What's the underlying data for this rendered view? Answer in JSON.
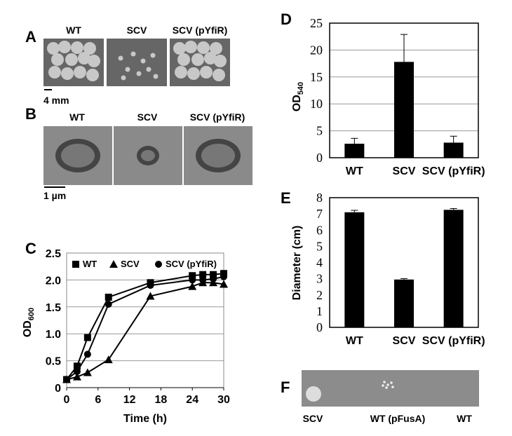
{
  "panel_labels": {
    "a": "A",
    "b": "B",
    "c": "C",
    "d": "D",
    "e": "E",
    "f": "F"
  },
  "panel_a": {
    "labels": [
      "WT",
      "SCV",
      "SCV (pYfiR)"
    ],
    "scale": "4 mm"
  },
  "panel_b": {
    "labels": [
      "WT",
      "SCV",
      "SCV (pYfiR)"
    ],
    "scale": "1 µm"
  },
  "panel_f": {
    "labels": [
      "SCV",
      "WT (pFusA)",
      "WT"
    ]
  },
  "chart_data": [
    {
      "type": "line",
      "panel": "C",
      "xlabel": "Time (h)",
      "ylabel": "OD600",
      "xlim": [
        0,
        30
      ],
      "ylim": [
        0,
        2.5
      ],
      "xticks": [
        "0",
        "6",
        "12",
        "18",
        "24",
        "30"
      ],
      "yticks": [
        "0",
        "0.5",
        "1.0",
        "1.5",
        "2.0",
        "2.5"
      ],
      "grid": true,
      "legend": "top",
      "x": [
        0,
        2,
        4,
        8,
        16,
        24,
        26,
        28,
        30
      ],
      "series": [
        {
          "name": "WT",
          "marker": "square",
          "values": [
            0.15,
            0.4,
            0.93,
            1.68,
            1.95,
            2.08,
            2.1,
            2.1,
            2.12
          ]
        },
        {
          "name": "SCV",
          "marker": "triangle",
          "values": [
            0.15,
            0.2,
            0.28,
            0.52,
            1.7,
            1.88,
            1.95,
            1.95,
            1.92
          ]
        },
        {
          "name": "SCV (pYfiR)",
          "marker": "circle",
          "values": [
            0.15,
            0.3,
            0.62,
            1.55,
            1.9,
            2.0,
            2.0,
            2.02,
            2.06
          ]
        }
      ]
    },
    {
      "type": "bar",
      "panel": "D",
      "ylabel": "OD540",
      "ylim": [
        0,
        25
      ],
      "yticks": [
        "0",
        "5",
        "10",
        "15",
        "20",
        "25"
      ],
      "grid": true,
      "categories": [
        "WT",
        "SCV",
        "SCV (pYfiR)"
      ],
      "values": [
        2.6,
        17.8,
        2.8
      ],
      "errors": [
        1.0,
        5.1,
        1.2
      ]
    },
    {
      "type": "bar",
      "panel": "E",
      "ylabel": "Diameter (cm)",
      "ylim": [
        0,
        8
      ],
      "yticks": [
        "0",
        "1",
        "2",
        "3",
        "4",
        "5",
        "6",
        "7",
        "8"
      ],
      "grid": false,
      "categories": [
        "WT",
        "SCV",
        "SCV (pYfiR)"
      ],
      "values": [
        7.1,
        2.95,
        7.25
      ],
      "errors": [
        0.12,
        0.06,
        0.08
      ]
    }
  ]
}
